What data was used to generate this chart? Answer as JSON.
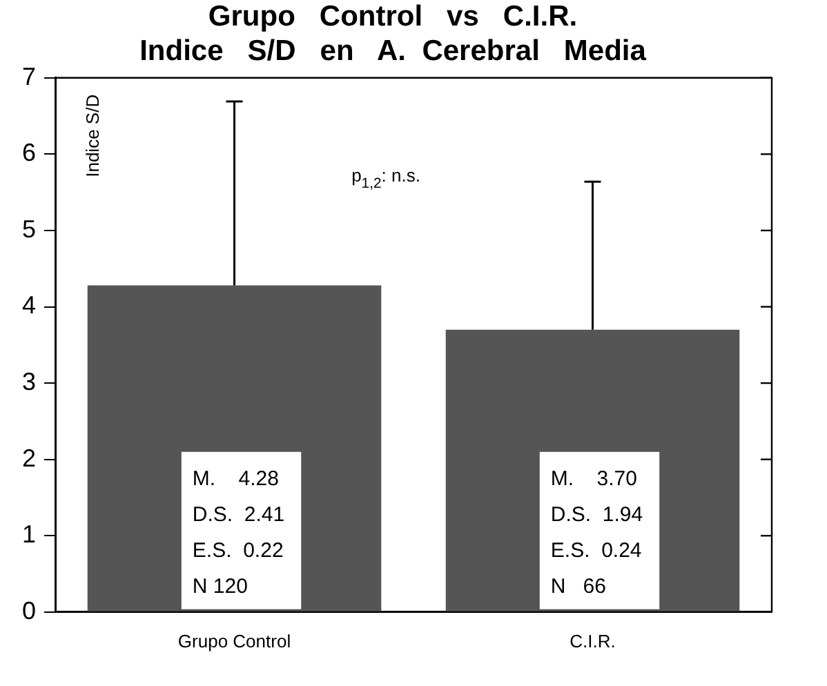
{
  "chart_data": {
    "type": "bar",
    "title": [
      "Grupo   Control   vs   C.I.R.",
      "Indice   S/D   en   A.  Cerebral   Media"
    ],
    "ylabel": "Indice S/D",
    "categories": [
      "Grupo Control",
      "C.I.R."
    ],
    "values": [
      4.28,
      3.7
    ],
    "color": "#555555",
    "errors": [
      [
        4.28,
        6.69
      ],
      [
        3.7,
        5.64
      ]
    ],
    "ylim": [
      0,
      7
    ],
    "yticks": [
      0,
      1,
      2,
      3,
      4,
      5,
      6,
      7
    ],
    "grid": false,
    "legend": false,
    "annotations": [
      "p$_{1,2}$: n.s.",
      "M.    4.28\nD.S.  2.41\nE.S.  0.22\nN 120",
      "M.    3.70\nD.S.  1.94\nE.S.  0.24\nN   66"
    ]
  }
}
